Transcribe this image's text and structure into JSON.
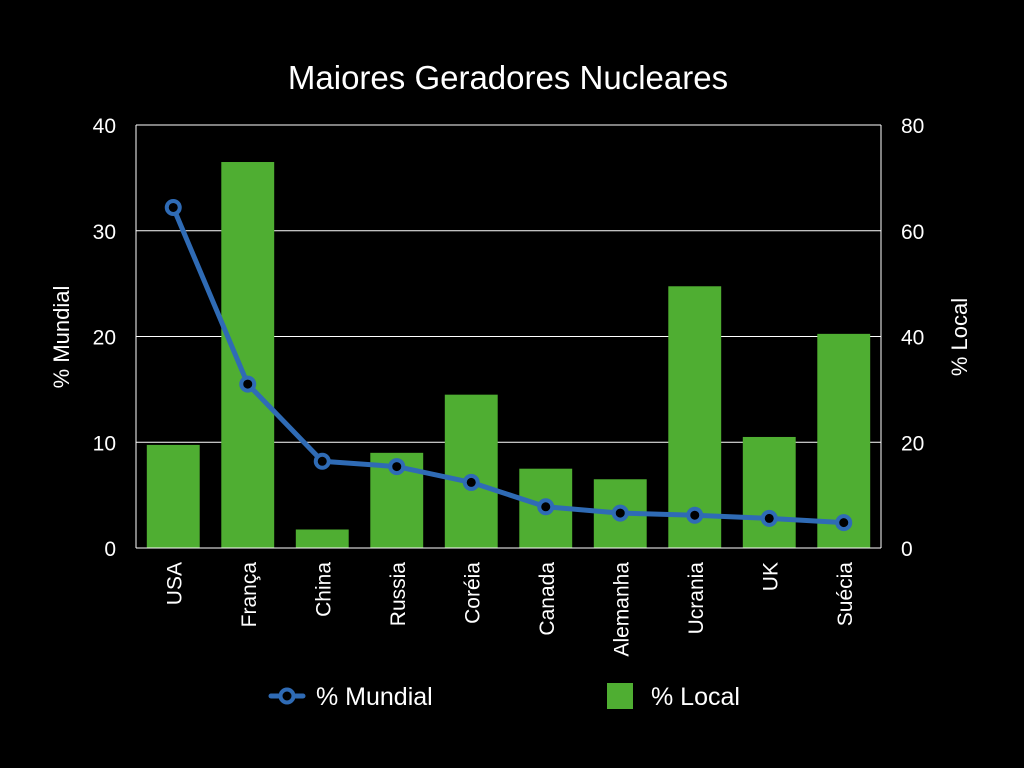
{
  "chart_data": {
    "type": "bar",
    "title": "Maiores Geradores Nucleares",
    "categories": [
      "USA",
      "França",
      "China",
      "Russia",
      "Coréia",
      "Canada",
      "Alemanha",
      "Ucrania",
      "UK",
      "Suécia"
    ],
    "series": [
      {
        "name": "% Local",
        "type": "bar",
        "axis": "right",
        "color": "#4fae32",
        "values": [
          19.5,
          73,
          3.5,
          18,
          29,
          15,
          13,
          49.5,
          21,
          40.5
        ]
      },
      {
        "name": "% Mundial",
        "type": "line",
        "axis": "left",
        "color": "#2f6bb5",
        "values": [
          32.2,
          15.5,
          8.2,
          7.7,
          6.2,
          3.9,
          3.3,
          3.1,
          2.8,
          2.4
        ]
      }
    ],
    "ylabel_left": "% Mundial",
    "ylabel_right": "% Local",
    "ylim_left": [
      0,
      40
    ],
    "ylim_right": [
      0,
      80
    ],
    "yticks_left": [
      "0",
      "10",
      "20",
      "30",
      "40"
    ],
    "yticks_right": [
      "0",
      "20",
      "40",
      "60",
      "80"
    ],
    "grid": true,
    "legend": "bottom",
    "background": "#000000",
    "text_color": "#ffffff"
  }
}
